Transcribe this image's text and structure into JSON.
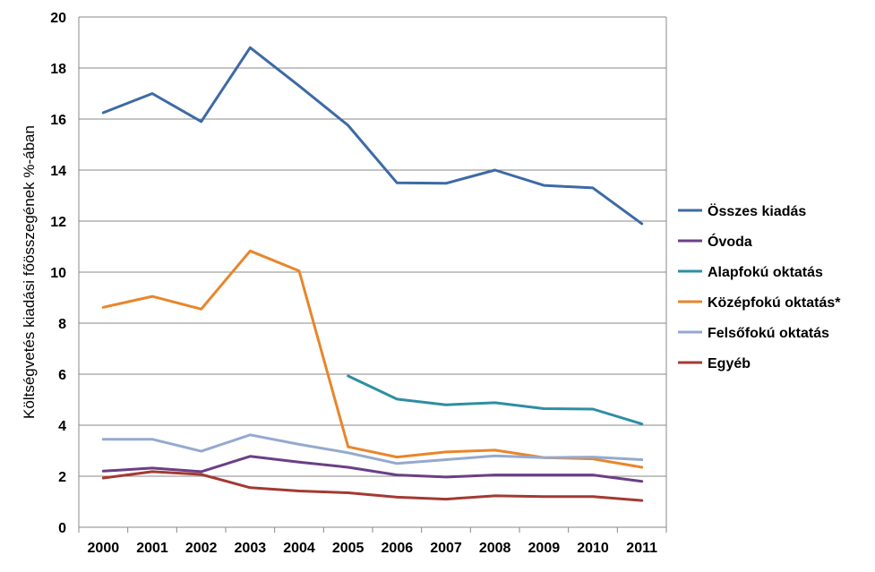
{
  "chart_data": {
    "type": "line",
    "title": "",
    "xlabel": "",
    "ylabel": "Költségvetés kiadási főösszegének %-ában",
    "ylim": [
      0,
      20
    ],
    "yticks": [
      0,
      2,
      4,
      6,
      8,
      10,
      12,
      14,
      16,
      18,
      20
    ],
    "grid": true,
    "legend_position": "right",
    "categories": [
      "2000",
      "2001",
      "2002",
      "2003",
      "2004",
      "2005",
      "2006",
      "2007",
      "2008",
      "2009",
      "2010",
      "2011"
    ],
    "series": [
      {
        "name": "Összes kiadás",
        "color": "#3d6aa5",
        "values": [
          16.25,
          17.0,
          15.9,
          18.8,
          17.3,
          15.75,
          13.5,
          13.48,
          14.0,
          13.4,
          13.3,
          11.9
        ]
      },
      {
        "name": "Óvoda",
        "color": "#6a3f86",
        "values": [
          2.2,
          2.32,
          2.18,
          2.78,
          2.55,
          2.35,
          2.05,
          1.97,
          2.05,
          2.05,
          2.05,
          1.8
        ]
      },
      {
        "name": "Alapfokú oktatás",
        "color": "#2e8ea3",
        "values": [
          null,
          null,
          null,
          null,
          null,
          5.93,
          5.02,
          4.8,
          4.88,
          4.65,
          4.63,
          4.05
        ]
      },
      {
        "name": "Középfokú oktatás*",
        "color": "#e8862b",
        "values": [
          8.62,
          9.05,
          8.55,
          10.83,
          10.05,
          3.15,
          2.75,
          2.95,
          3.02,
          2.73,
          2.68,
          2.35
        ]
      },
      {
        "name": "Felsőfokú oktatás",
        "color": "#95a9cf",
        "values": [
          3.45,
          3.45,
          2.98,
          3.62,
          3.25,
          2.92,
          2.5,
          2.65,
          2.8,
          2.73,
          2.75,
          2.65
        ]
      },
      {
        "name": "Egyéb",
        "color": "#a33a33",
        "values": [
          1.93,
          2.18,
          2.07,
          1.55,
          1.42,
          1.35,
          1.18,
          1.1,
          1.23,
          1.2,
          1.2,
          1.05
        ]
      }
    ]
  }
}
